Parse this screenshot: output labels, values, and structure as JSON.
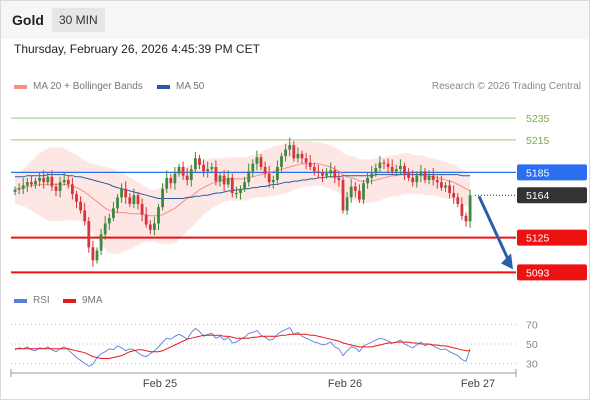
{
  "header": {
    "instrument": "Gold",
    "timeframe": "30 MIN"
  },
  "datetime": "Thursday, February 26, 2026 4:45:39 PM CET",
  "credit": "Research © 2026 Trading Central",
  "colors": {
    "bollinger_fill": "#fde3e1",
    "ma20": "#f58f87",
    "ma50": "#2c5a9e",
    "resistance": "#9bc96b",
    "support": "#ee1111",
    "pivot": "#2a6ff0",
    "last_price": "#333333",
    "arrow": "#2a5fa8",
    "bull_candle": "#3d8a3d",
    "bear_candle": "#d9333b",
    "rsi": "#5a7fd6",
    "rsi_ma": "#e21b1b",
    "axis": "#999999"
  },
  "chart_data": [
    {
      "type": "candlestick",
      "title": "Gold",
      "ylim": [
        5085,
        5248
      ],
      "x_ticks": [
        "Feb 25",
        "Feb 26",
        "Feb 27"
      ],
      "legend": [
        {
          "label": "MA 20 + Bollinger Bands",
          "color": "#f58f87"
        },
        {
          "label": "MA 50",
          "color": "#2c5a9e"
        }
      ],
      "levels": [
        {
          "label": "5235",
          "value": 5235,
          "kind": "resistance"
        },
        {
          "label": "5215",
          "value": 5215,
          "kind": "resistance"
        },
        {
          "label": "5185",
          "value": 5185,
          "kind": "pivot"
        },
        {
          "label": "5164",
          "value": 5164,
          "kind": "last"
        },
        {
          "label": "5125",
          "value": 5125,
          "kind": "support"
        },
        {
          "label": "5093",
          "value": 5093,
          "kind": "support"
        }
      ],
      "arrow": {
        "from": 5164,
        "to": 5093,
        "direction": "down"
      },
      "close": [
        5169,
        5170,
        5173,
        5176,
        5174,
        5177,
        5180,
        5176,
        5181,
        5172,
        5168,
        5176,
        5178,
        5174,
        5165,
        5158,
        5150,
        5140,
        5116,
        5104,
        5113,
        5128,
        5138,
        5143,
        5152,
        5162,
        5170,
        5162,
        5156,
        5164,
        5156,
        5146,
        5137,
        5132,
        5138,
        5153,
        5170,
        5180,
        5175,
        5184,
        5190,
        5182,
        5178,
        5188,
        5198,
        5192,
        5186,
        5188,
        5190,
        5177,
        5182,
        5174,
        5180,
        5166,
        5166,
        5170,
        5176,
        5186,
        5193,
        5199,
        5190,
        5184,
        5176,
        5178,
        5190,
        5200,
        5206,
        5210,
        5198,
        5202,
        5198,
        5194,
        5190,
        5186,
        5185,
        5182,
        5184,
        5187,
        5180,
        5178,
        5150,
        5162,
        5172,
        5168,
        5160,
        5175,
        5180,
        5184,
        5189,
        5194,
        5193,
        5190,
        5186,
        5188,
        5191,
        5184,
        5180,
        5176,
        5182,
        5186,
        5178,
        5182,
        5178,
        5176,
        5171,
        5173,
        5166,
        5162,
        5156,
        5145,
        5140,
        5164
      ],
      "ma20": [
        5170,
        5170,
        5171,
        5172,
        5173,
        5173,
        5174,
        5174,
        5174,
        5174,
        5174,
        5174,
        5174,
        5173,
        5172,
        5171,
        5169,
        5167,
        5164,
        5161,
        5158,
        5155,
        5152,
        5150,
        5149,
        5148,
        5148,
        5148,
        5147,
        5147,
        5147,
        5147,
        5146,
        5145,
        5145,
        5145,
        5146,
        5148,
        5150,
        5152,
        5155,
        5158,
        5161,
        5163,
        5166,
        5169,
        5171,
        5173,
        5175,
        5176,
        5177,
        5178,
        5179,
        5179,
        5179,
        5179,
        5179,
        5180,
        5181,
        5182,
        5183,
        5184,
        5185,
        5186,
        5187,
        5188,
        5189,
        5190,
        5191,
        5192,
        5193,
        5193,
        5193,
        5193,
        5193,
        5192,
        5191,
        5190,
        5188,
        5186,
        5183,
        5181,
        5180,
        5179,
        5177,
        5177,
        5177,
        5177,
        5178,
        5179,
        5180,
        5181,
        5182,
        5182,
        5183,
        5184,
        5184,
        5183,
        5183,
        5183,
        5182,
        5181,
        5181,
        5180,
        5179,
        5178,
        5177,
        5176,
        5174,
        5172,
        5170,
        5168
      ],
      "ma50": [
        5181,
        5181,
        5181,
        5182,
        5182,
        5182,
        5182,
        5182,
        5183,
        5183,
        5183,
        5183,
        5183,
        5182,
        5182,
        5181,
        5181,
        5180,
        5179,
        5178,
        5177,
        5176,
        5175,
        5174,
        5172,
        5171,
        5170,
        5169,
        5168,
        5167,
        5166,
        5165,
        5164,
        5163,
        5162,
        5161,
        5161,
        5161,
        5161,
        5161,
        5161,
        5161,
        5162,
        5162,
        5163,
        5163,
        5164,
        5164,
        5165,
        5166,
        5166,
        5167,
        5168,
        5168,
        5169,
        5169,
        5170,
        5170,
        5171,
        5171,
        5172,
        5172,
        5173,
        5174,
        5174,
        5175,
        5176,
        5176,
        5177,
        5177,
        5178,
        5178,
        5179,
        5179,
        5180,
        5180,
        5181,
        5181,
        5181,
        5181,
        5182,
        5182,
        5182,
        5182,
        5182,
        5182,
        5182,
        5182,
        5183,
        5183,
        5183,
        5183,
        5183,
        5183,
        5183,
        5183,
        5183,
        5183,
        5183,
        5183,
        5183,
        5183,
        5183,
        5183,
        5183,
        5183,
        5183,
        5183,
        5183,
        5182,
        5182,
        5182
      ],
      "bb_width": [
        14,
        15,
        17,
        20,
        23,
        26,
        29,
        31,
        33,
        34,
        34,
        34,
        33,
        32,
        31,
        30,
        29,
        29,
        30,
        32,
        34,
        36,
        38,
        39,
        39,
        38,
        37,
        35,
        33,
        31,
        29,
        27,
        25,
        24,
        24,
        25,
        27,
        29,
        31,
        32,
        32,
        31,
        30,
        29,
        28,
        27,
        25,
        24,
        23,
        22,
        21,
        20,
        20,
        20,
        20,
        20,
        20,
        20,
        20,
        20,
        21,
        22,
        22,
        23,
        23,
        23,
        23,
        23,
        22,
        22,
        21,
        21,
        21,
        20,
        20,
        20,
        20,
        20,
        20,
        20,
        20,
        20,
        20,
        20,
        20,
        20,
        20,
        20,
        20,
        20,
        19,
        19,
        19,
        19,
        19,
        19,
        19,
        18,
        18,
        18,
        18,
        17,
        17,
        17,
        17,
        17,
        16,
        16,
        16,
        16,
        16,
        16
      ]
    },
    {
      "type": "line",
      "title": "RSI",
      "ylim": [
        20,
        80
      ],
      "y_ticks": [
        30,
        50,
        70
      ],
      "legend": [
        {
          "label": "RSI",
          "color": "#5a7fd6"
        },
        {
          "label": "9MA",
          "color": "#e21b1b"
        }
      ],
      "series": [
        {
          "name": "RSI",
          "values": [
            44,
            46,
            45,
            47,
            44,
            43,
            46,
            45,
            47,
            44,
            42,
            45,
            47,
            44,
            40,
            36,
            33,
            30,
            27,
            29,
            36,
            40,
            42,
            45,
            44,
            48,
            46,
            43,
            45,
            44,
            41,
            38,
            37,
            40,
            43,
            47,
            52,
            56,
            55,
            58,
            60,
            58,
            55,
            62,
            66,
            63,
            58,
            60,
            61,
            56,
            58,
            54,
            57,
            51,
            52,
            55,
            57,
            61,
            62,
            64,
            59,
            57,
            54,
            55,
            60,
            63,
            65,
            67,
            60,
            62,
            58,
            56,
            54,
            52,
            51,
            49,
            50,
            52,
            47,
            45,
            38,
            43,
            47,
            46,
            42,
            48,
            50,
            52,
            54,
            56,
            55,
            53,
            51,
            52,
            54,
            50,
            48,
            46,
            49,
            52,
            48,
            50,
            48,
            46,
            44,
            45,
            42,
            40,
            38,
            34,
            32,
            45
          ]
        },
        {
          "name": "9MA",
          "values": [
            45,
            45,
            45,
            45,
            45,
            45,
            45,
            45,
            45,
            45,
            45,
            45,
            45,
            45,
            44,
            43,
            42,
            41,
            39,
            37,
            36,
            35,
            35,
            35,
            36,
            37,
            38,
            40,
            42,
            43,
            44,
            44,
            43,
            42,
            42,
            42,
            43,
            45,
            47,
            49,
            51,
            53,
            55,
            56,
            57,
            58,
            59,
            59,
            59,
            59,
            59,
            58,
            58,
            57,
            56,
            56,
            56,
            56,
            57,
            57,
            58,
            58,
            58,
            58,
            58,
            59,
            59,
            60,
            60,
            60,
            60,
            60,
            59,
            59,
            58,
            57,
            56,
            55,
            54,
            53,
            51,
            50,
            49,
            48,
            47,
            47,
            47,
            47,
            48,
            49,
            50,
            51,
            51,
            52,
            52,
            52,
            52,
            51,
            51,
            50,
            50,
            50,
            49,
            49,
            48,
            48,
            47,
            46,
            45,
            44,
            43,
            43
          ]
        }
      ]
    }
  ]
}
